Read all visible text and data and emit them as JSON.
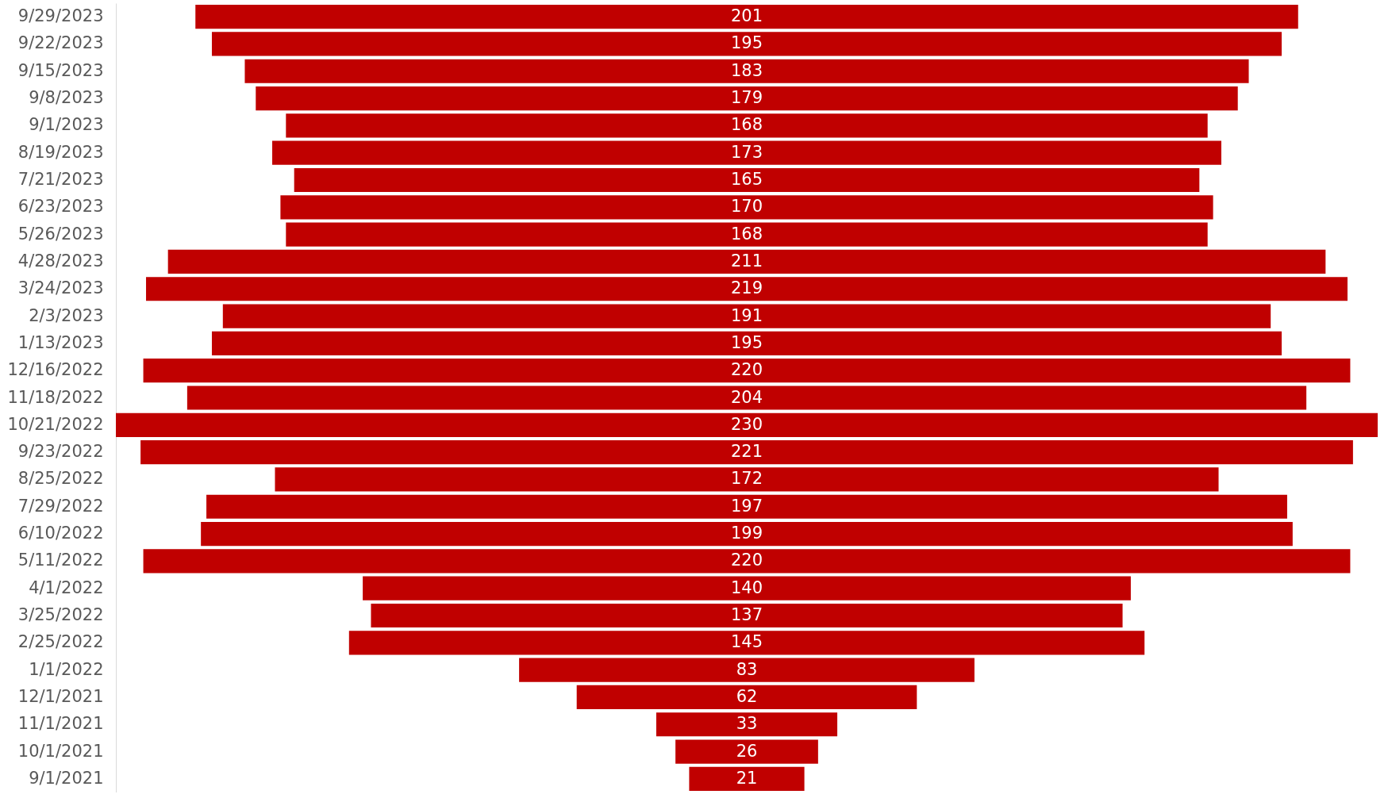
{
  "chart_data": {
    "type": "other",
    "categories": [
      "9/29/2023",
      "9/22/2023",
      "9/15/2023",
      "9/8/2023",
      "9/1/2023",
      "8/19/2023",
      "7/21/2023",
      "6/23/2023",
      "5/26/2023",
      "4/28/2023",
      "3/24/2023",
      "2/3/2023",
      "1/13/2023",
      "12/16/2022",
      "11/18/2022",
      "10/21/2022",
      "9/23/2022",
      "8/25/2022",
      "7/29/2022",
      "6/10/2022",
      "5/11/2022",
      "4/1/2022",
      "3/25/2022",
      "2/25/2022",
      "1/1/2022",
      "12/1/2021",
      "11/1/2021",
      "10/1/2021",
      "9/1/2021"
    ],
    "values": [
      201,
      195,
      183,
      179,
      168,
      173,
      165,
      170,
      168,
      211,
      219,
      191,
      195,
      220,
      204,
      230,
      221,
      172,
      197,
      199,
      220,
      140,
      137,
      145,
      83,
      62,
      33,
      26,
      21
    ],
    "color": "#c00000",
    "data_labels": true
  }
}
